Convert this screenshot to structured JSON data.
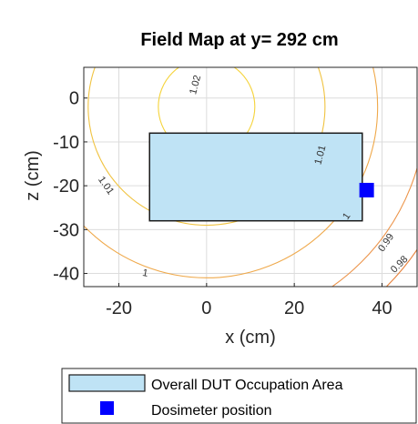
{
  "chart_data": {
    "type": "contour",
    "title": "Field Map at y= 292 cm",
    "xlabel": "x (cm)",
    "ylabel": "z (cm)",
    "xlim": [
      -28,
      48
    ],
    "ylim": [
      -43,
      7
    ],
    "xticks": [
      -20,
      0,
      20,
      40
    ],
    "xtick_labels": [
      "-20",
      "0",
      "20",
      "40"
    ],
    "yticks": [
      0,
      -10,
      -20,
      -30,
      -40
    ],
    "ytick_labels": [
      "0",
      "-10",
      "-20",
      "-30",
      "-40"
    ],
    "grid": true,
    "contour_levels": [
      {
        "level": 1.02,
        "label": "1.02",
        "color": "#f5d33a"
      },
      {
        "level": 1.01,
        "label": "1.01",
        "color": "#f0c341"
      },
      {
        "level": 1,
        "label": "1",
        "color": "#efa94b"
      },
      {
        "level": 0.99,
        "label": "0.99",
        "color": "#ec944a"
      },
      {
        "level": 0.98,
        "label": "0.98",
        "color": "#e8843f"
      }
    ],
    "occupation_area": {
      "x": [
        -13,
        35.5
      ],
      "z": [
        -28,
        -8
      ],
      "fill": "#bfe3f5",
      "edge": "#1a1a1a"
    },
    "dosimeter": {
      "x": 36.5,
      "z": -21,
      "color": "#0000ff"
    },
    "legend": {
      "placement": "bottom-outside",
      "entries": [
        "Overall DUT Occupation Area",
        "Dosimeter position"
      ]
    }
  }
}
